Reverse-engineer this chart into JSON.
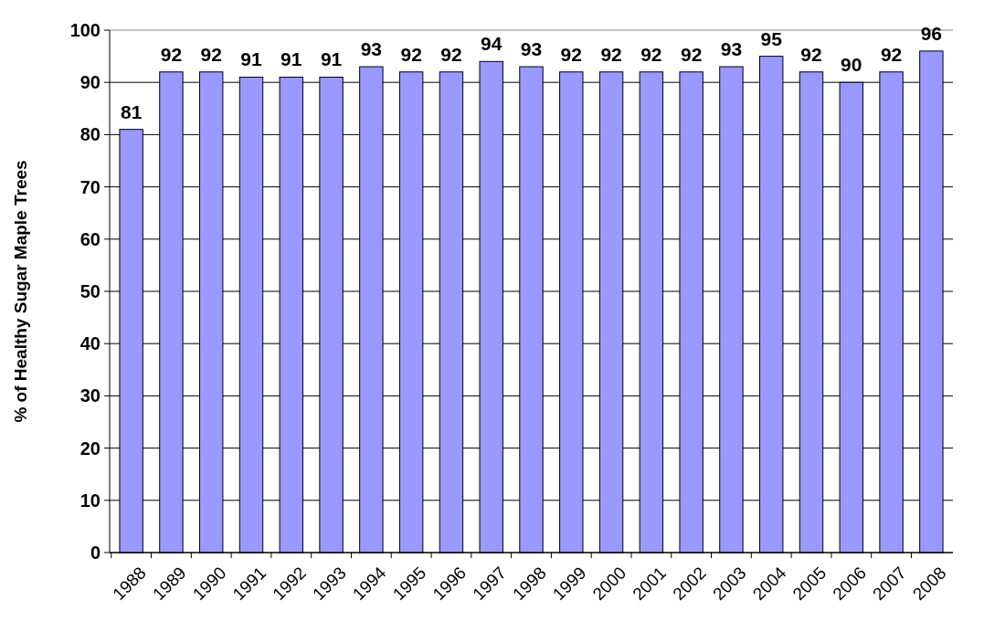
{
  "chart_data": {
    "type": "bar",
    "ylabel": "% of Healthy Sugar Maple Trees",
    "categories": [
      "1988",
      "1989",
      "1990",
      "1991",
      "1992",
      "1993",
      "1994",
      "1995",
      "1996",
      "1997",
      "1998",
      "1999",
      "2000",
      "2001",
      "2002",
      "2003",
      "2004",
      "2005",
      "2006",
      "2007",
      "2008"
    ],
    "values": [
      81,
      92,
      92,
      91,
      91,
      91,
      93,
      92,
      92,
      94,
      93,
      92,
      92,
      92,
      92,
      93,
      95,
      92,
      90,
      92,
      96
    ],
    "color": "#9999ff",
    "ylim": [
      0,
      100
    ],
    "yticks": [
      0,
      10,
      20,
      30,
      40,
      50,
      60,
      70,
      80,
      90,
      100
    ],
    "grid": "y",
    "data_labels": true
  }
}
